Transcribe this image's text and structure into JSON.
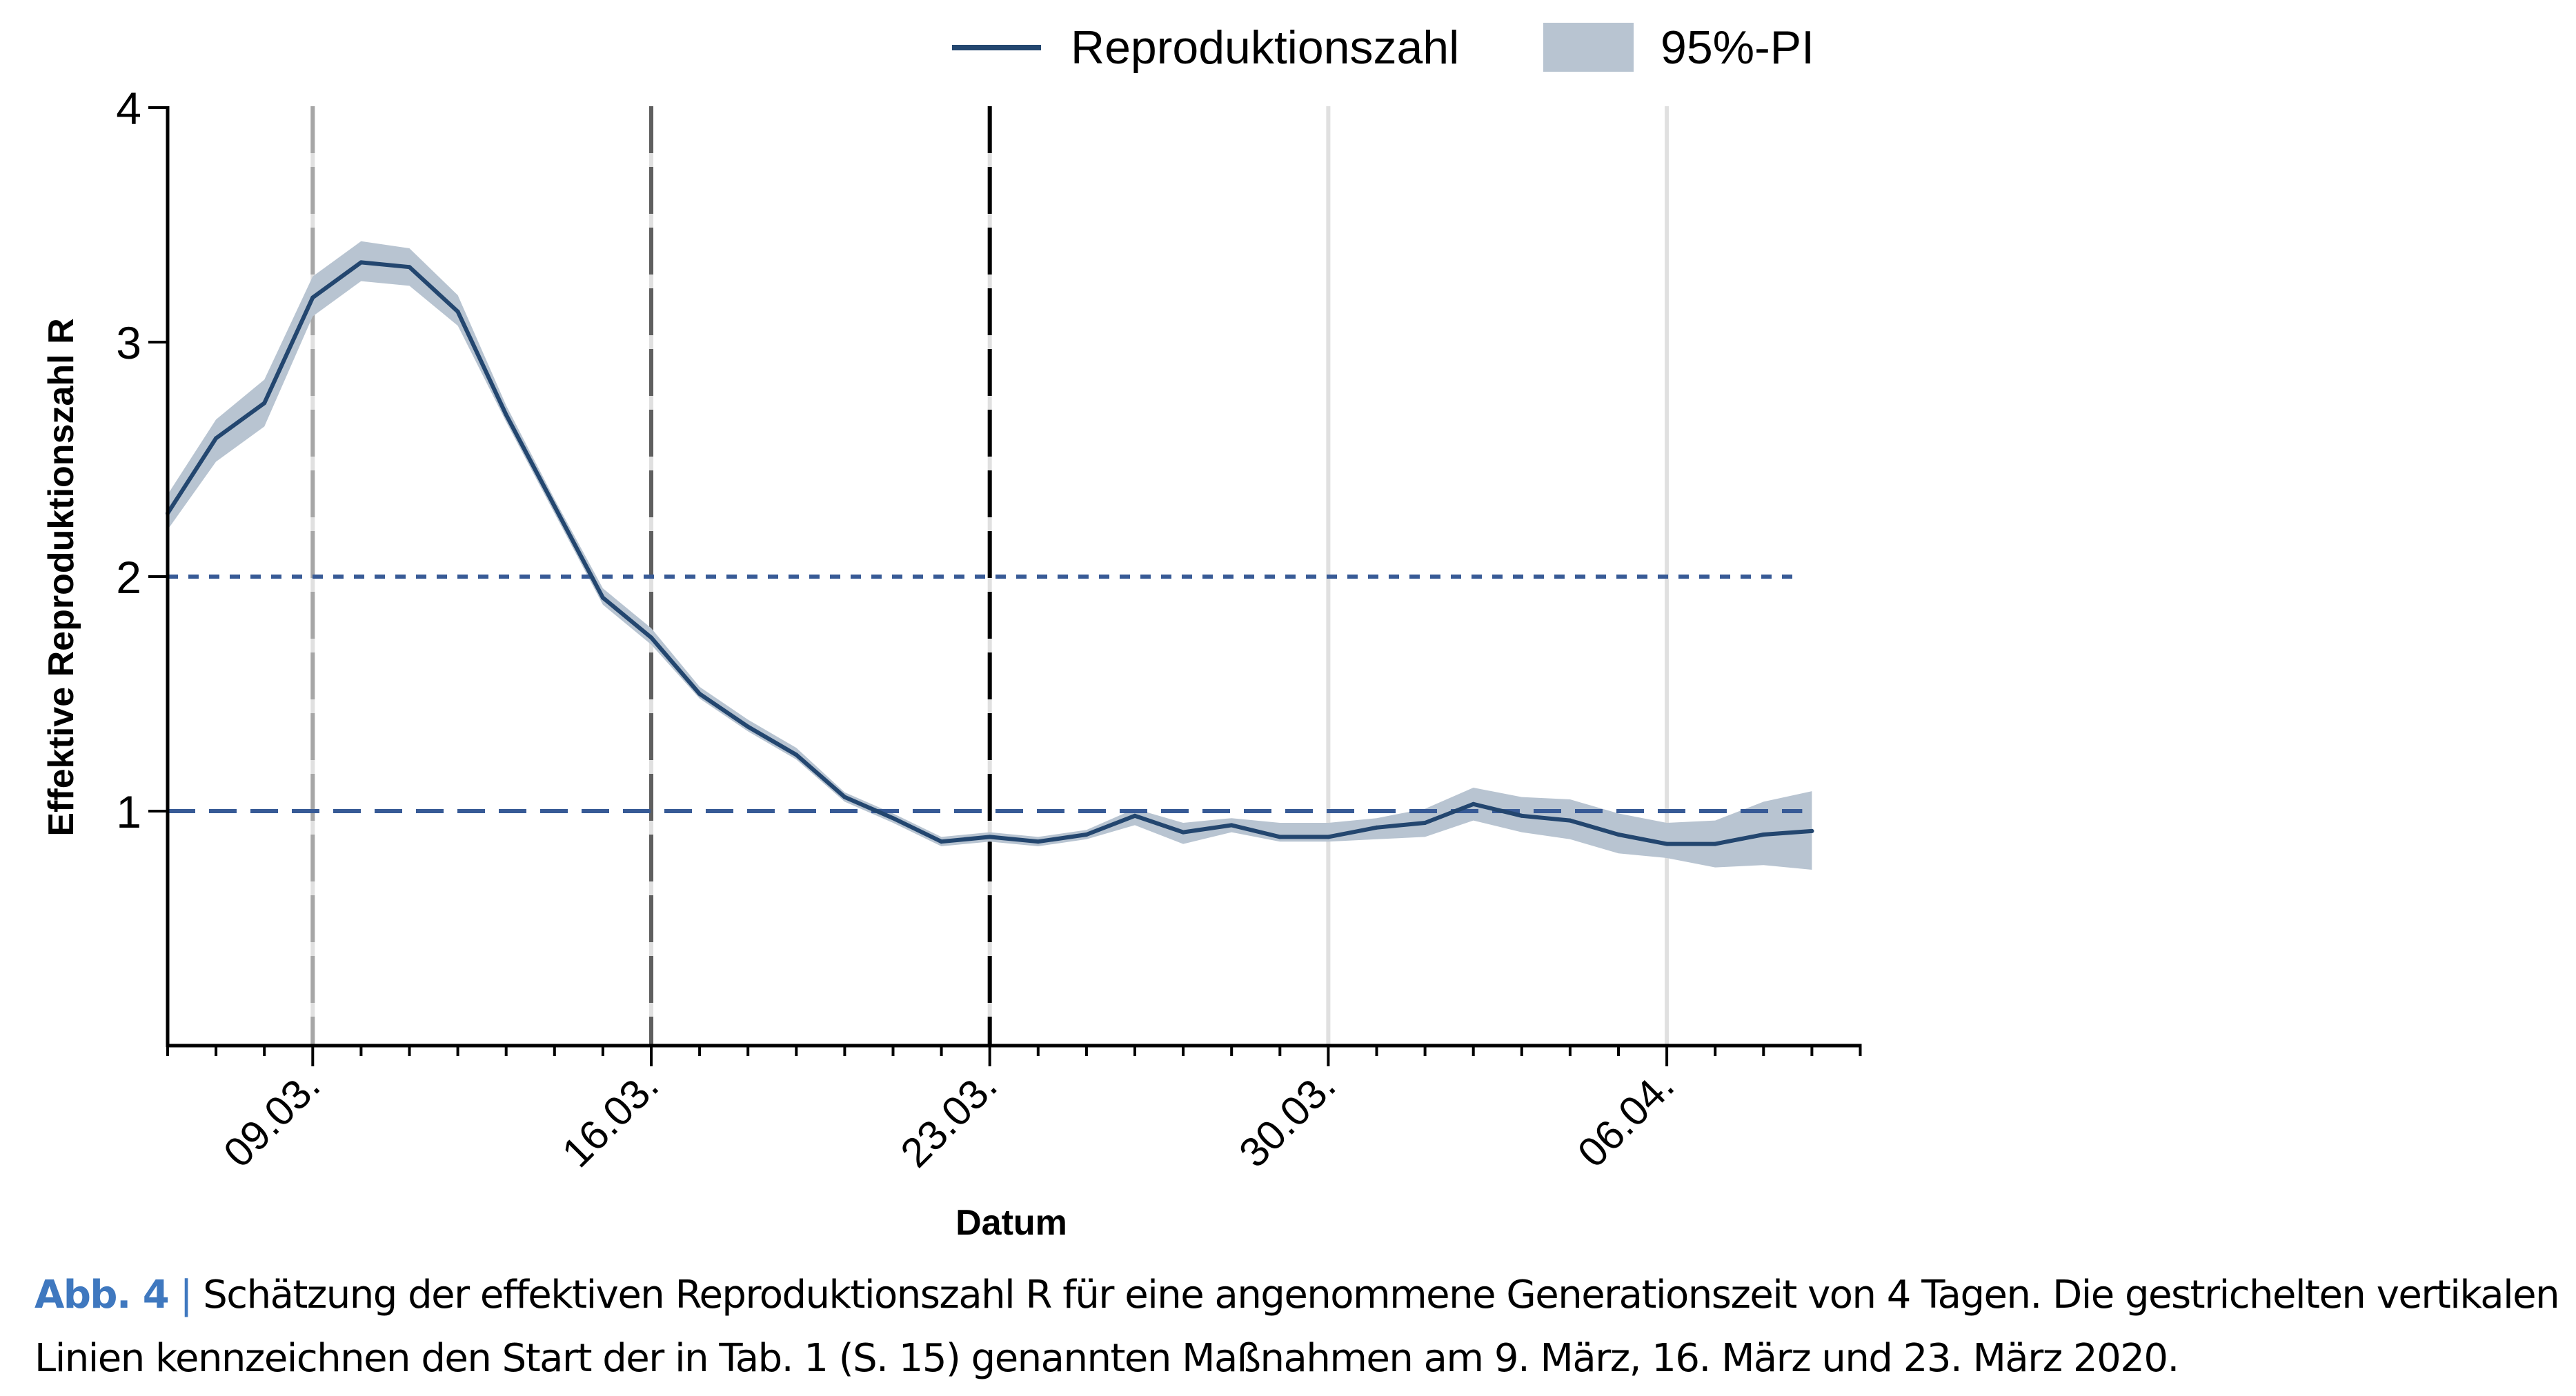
{
  "chart_data": {
    "type": "line",
    "title": "",
    "xlabel": "Datum",
    "ylabel": "Effektive Reproduktionszahl R",
    "ylim": [
      0,
      4
    ],
    "yticks": [
      1,
      2,
      3,
      4
    ],
    "xlim_days": [
      0,
      35
    ],
    "x_start_date": "06.03.",
    "xtick_labels": [
      {
        "day": 3,
        "label": "09.03."
      },
      {
        "day": 10,
        "label": "16.03."
      },
      {
        "day": 17,
        "label": "23.03."
      },
      {
        "day": 24,
        "label": "30.03."
      },
      {
        "day": 31,
        "label": "06.04."
      }
    ],
    "legend": {
      "position": "top-center",
      "entries": [
        {
          "label": "Reproduktionszahl",
          "kind": "line"
        },
        {
          "label": "95%-PI",
          "kind": "band"
        }
      ]
    },
    "reference_lines": [
      {
        "y": 2,
        "style": "dotted"
      },
      {
        "y": 1,
        "style": "dashed"
      }
    ],
    "intervention_lines": [
      {
        "day": 3,
        "style": "dashed",
        "shade": "light"
      },
      {
        "day": 10,
        "style": "dashed",
        "shade": "medium"
      },
      {
        "day": 17,
        "style": "dashed",
        "shade": "dark"
      }
    ],
    "gridlines_days": [
      24,
      31
    ],
    "series": [
      {
        "name": "Reproduktionszahl",
        "x_days": [
          0,
          1,
          2,
          3,
          4,
          5,
          6,
          7,
          8,
          9,
          10,
          11,
          12,
          13,
          14,
          15,
          16,
          17,
          18,
          19,
          20,
          21,
          22,
          23,
          24,
          25,
          26,
          27,
          28,
          29,
          30,
          31,
          32,
          33,
          34
        ],
        "values": [
          2.27,
          2.59,
          2.74,
          3.19,
          3.34,
          3.32,
          3.13,
          2.69,
          2.3,
          1.91,
          1.74,
          1.5,
          1.36,
          1.24,
          1.06,
          0.97,
          0.87,
          0.89,
          0.87,
          0.9,
          0.98,
          0.91,
          0.94,
          0.89,
          0.89,
          0.93,
          0.95,
          1.03,
          0.98,
          0.96,
          0.9,
          0.86,
          0.86,
          0.9,
          0.915
        ]
      },
      {
        "name": "95%-PI",
        "x_days": [
          0,
          1,
          2,
          3,
          4,
          5,
          6,
          7,
          8,
          9,
          10,
          11,
          12,
          13,
          14,
          15,
          16,
          17,
          18,
          19,
          20,
          21,
          22,
          23,
          24,
          25,
          26,
          27,
          28,
          29,
          30,
          31,
          32,
          33,
          34
        ],
        "lower": [
          2.2,
          2.49,
          2.64,
          3.11,
          3.26,
          3.24,
          3.07,
          2.66,
          2.27,
          1.88,
          1.71,
          1.48,
          1.34,
          1.22,
          1.04,
          0.95,
          0.85,
          0.87,
          0.85,
          0.88,
          0.94,
          0.86,
          0.91,
          0.87,
          0.87,
          0.88,
          0.89,
          0.96,
          0.91,
          0.88,
          0.82,
          0.8,
          0.76,
          0.77,
          0.75
        ],
        "upper": [
          2.35,
          2.67,
          2.84,
          3.28,
          3.43,
          3.4,
          3.2,
          2.73,
          2.33,
          1.95,
          1.78,
          1.53,
          1.39,
          1.27,
          1.08,
          0.99,
          0.89,
          0.91,
          0.89,
          0.92,
          1.01,
          0.95,
          0.97,
          0.95,
          0.95,
          0.97,
          1.01,
          1.1,
          1.06,
          1.05,
          0.99,
          0.95,
          0.96,
          1.04,
          1.085
        ]
      }
    ]
  },
  "colors": {
    "line": "#23466f",
    "band": "#b8c4d1",
    "reference": "#375a96",
    "intervention_light": "#a6a6a6",
    "intervention_medium": "#5f5f5f",
    "intervention_dark": "#000000",
    "grid": "#e0e0e0",
    "caption_accent": "#3f78bf"
  },
  "caption": {
    "label": "Abb. 4",
    "separator": "|",
    "text": "Schätzung der effektiven Reproduktionszahl R für eine angenommene Generationszeit von 4 Tagen. Die gestrichelten vertikalen Linien kennzeichnen den Start der in Tab. 1 (S. 15) genannten Maßnahmen am 9. März, 16. März und 23. März 2020."
  }
}
